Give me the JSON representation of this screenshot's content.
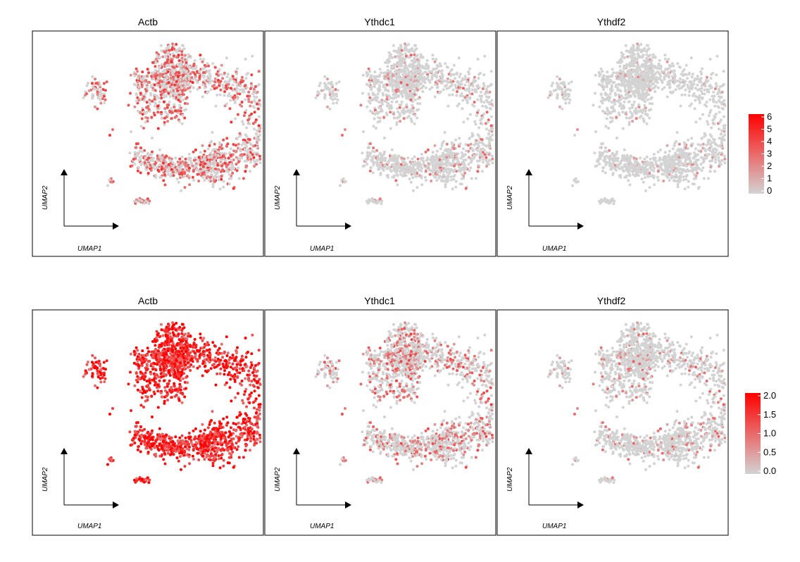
{
  "chart_data": {
    "type": "scatter",
    "description_of_marks": "UMAP feature plots",
    "x_axis_label": "UMAP1",
    "y_axis_label": "UMAP2",
    "colors": {
      "low": "#d3d3d3",
      "high": "#ff0000"
    },
    "rows": [
      {
        "legend": {
          "min": 0,
          "max": 6,
          "ticks": [
            "6",
            "5",
            "4",
            "3",
            "2",
            "1",
            "0"
          ]
        },
        "panels": [
          {
            "title": "Actb",
            "level": 0.33
          },
          {
            "title": "Ythdc1",
            "level": 0.07
          },
          {
            "title": "Ythdf2",
            "level": 0.02
          }
        ]
      },
      {
        "legend": {
          "min": 0,
          "max": 2,
          "ticks": [
            "2.0",
            "1.5",
            "1.0",
            "0.5",
            "0.0"
          ]
        },
        "panels": [
          {
            "title": "Actb",
            "level": 0.75
          },
          {
            "title": "Ythdc1",
            "level": 0.22
          },
          {
            "title": "Ythdf2",
            "level": 0.07
          }
        ]
      }
    ]
  }
}
